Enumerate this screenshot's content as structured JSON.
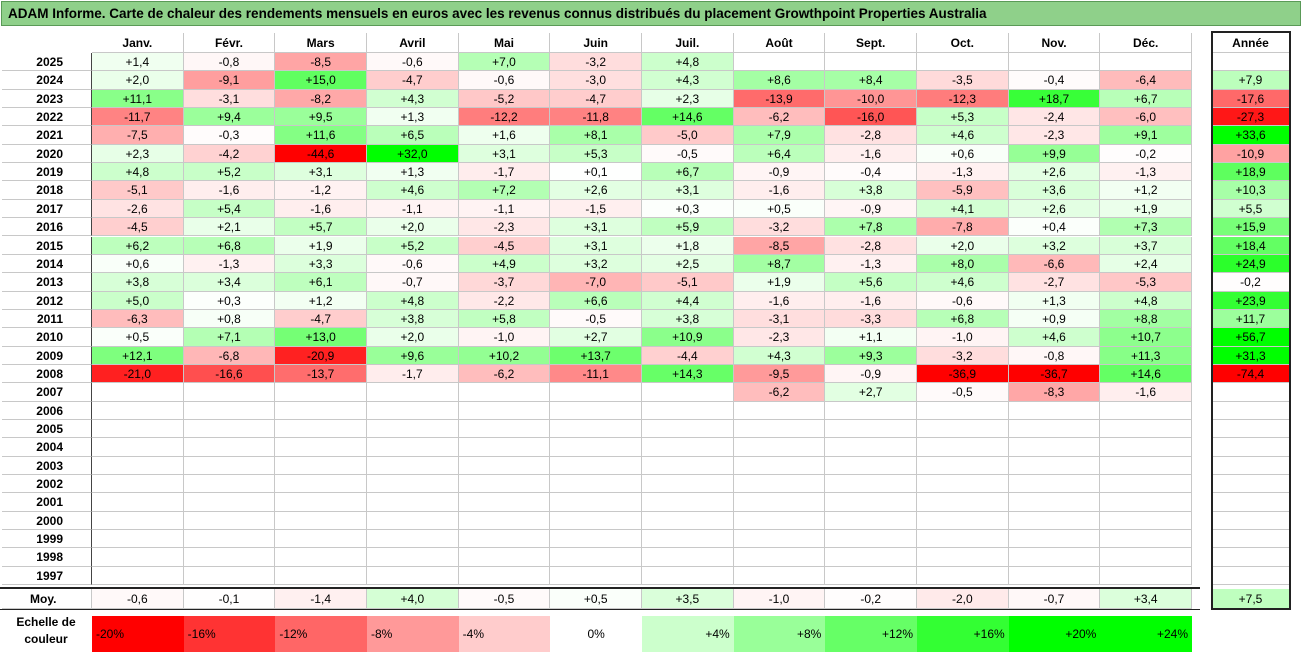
{
  "chart_data": {
    "type": "heatmap",
    "title": "ADAM Informe. Carte de chaleur des rendements mensuels en euros avec les revenus connus distribués du placement Growthpoint Properties Australia",
    "columns": [
      "Janv.",
      "Févr.",
      "Mars",
      "Avril",
      "Mai",
      "Juin",
      "Juil.",
      "Août",
      "Sept.",
      "Oct.",
      "Nov.",
      "Déc."
    ],
    "annual_column": "Année",
    "rows": [
      {
        "year": "2025",
        "values": [
          "+1,4",
          "-0,8",
          "-8,5",
          "-0,6",
          "+7,0",
          "-3,2",
          "+4,8",
          "",
          "",
          "",
          "",
          ""
        ],
        "annual": ""
      },
      {
        "year": "2024",
        "values": [
          "+2,0",
          "-9,1",
          "+15,0",
          "-4,7",
          "-0,6",
          "-3,0",
          "+4,3",
          "+8,6",
          "+8,4",
          "-3,5",
          "-0,4",
          "-6,4"
        ],
        "annual": "+7,9"
      },
      {
        "year": "2023",
        "values": [
          "+11,1",
          "-3,1",
          "-8,2",
          "+4,3",
          "-5,2",
          "-4,7",
          "+2,3",
          "-13,9",
          "-10,0",
          "-12,3",
          "+18,7",
          "+6,7"
        ],
        "annual": "-17,6"
      },
      {
        "year": "2022",
        "values": [
          "-11,7",
          "+9,4",
          "+9,5",
          "+1,3",
          "-12,2",
          "-11,8",
          "+14,6",
          "-6,2",
          "-16,0",
          "+5,3",
          "-2,4",
          "-6,0"
        ],
        "annual": "-27,3"
      },
      {
        "year": "2021",
        "values": [
          "-7,5",
          "-0,3",
          "+11,6",
          "+6,5",
          "+1,6",
          "+8,1",
          "-5,0",
          "+7,9",
          "-2,8",
          "+4,6",
          "-2,3",
          "+9,1"
        ],
        "annual": "+33,6"
      },
      {
        "year": "2020",
        "values": [
          "+2,3",
          "-4,2",
          "-44,6",
          "+32,0",
          "+3,1",
          "+5,3",
          "-0,5",
          "+6,4",
          "-1,6",
          "+0,6",
          "+9,9",
          "-0,2"
        ],
        "annual": "-10,9"
      },
      {
        "year": "2019",
        "values": [
          "+4,8",
          "+5,2",
          "+3,1",
          "+1,3",
          "-1,7",
          "+0,1",
          "+6,7",
          "-0,9",
          "-0,4",
          "-1,3",
          "+2,6",
          "-1,3"
        ],
        "annual": "+18,9"
      },
      {
        "year": "2018",
        "values": [
          "-5,1",
          "-1,6",
          "-1,2",
          "+4,6",
          "+7,2",
          "+2,6",
          "+3,1",
          "-1,6",
          "+3,8",
          "-5,9",
          "+3,6",
          "+1,2"
        ],
        "annual": "+10,3"
      },
      {
        "year": "2017",
        "values": [
          "-2,6",
          "+5,4",
          "-1,6",
          "-1,1",
          "-1,1",
          "-1,5",
          "+0,3",
          "+0,5",
          "-0,9",
          "+4,1",
          "+2,6",
          "+1,9"
        ],
        "annual": "+5,5"
      },
      {
        "year": "2016",
        "values": [
          "-4,5",
          "+2,1",
          "+5,7",
          "+2,0",
          "-2,3",
          "+3,1",
          "+5,9",
          "-3,2",
          "+7,8",
          "-7,8",
          "+0,4",
          "+7,3"
        ],
        "annual": "+15,9"
      },
      {
        "year": "2015",
        "values": [
          "+6,2",
          "+6,8",
          "+1,9",
          "+5,2",
          "-4,5",
          "+3,1",
          "+1,8",
          "-8,5",
          "-2,8",
          "+2,0",
          "+3,2",
          "+3,7"
        ],
        "annual": "+18,4"
      },
      {
        "year": "2014",
        "values": [
          "+0,6",
          "-1,3",
          "+3,3",
          "-0,6",
          "+4,9",
          "+3,2",
          "+2,5",
          "+8,7",
          "-1,3",
          "+8,0",
          "-6,6",
          "+2,4"
        ],
        "annual": "+24,9"
      },
      {
        "year": "2013",
        "values": [
          "+3,8",
          "+3,4",
          "+6,1",
          "-0,7",
          "-3,7",
          "-7,0",
          "-5,1",
          "+1,9",
          "+5,6",
          "+4,6",
          "-2,7",
          "-5,3"
        ],
        "annual": "-0,2"
      },
      {
        "year": "2012",
        "values": [
          "+5,0",
          "+0,3",
          "+1,2",
          "+4,8",
          "-2,2",
          "+6,6",
          "+4,4",
          "-1,6",
          "-1,6",
          "-0,6",
          "+1,3",
          "+4,8"
        ],
        "annual": "+23,9"
      },
      {
        "year": "2011",
        "values": [
          "-6,3",
          "+0,8",
          "-4,7",
          "+3,8",
          "+5,8",
          "-0,5",
          "+3,8",
          "-3,1",
          "-3,3",
          "+6,8",
          "+0,9",
          "+8,8"
        ],
        "annual": "+11,7"
      },
      {
        "year": "2010",
        "values": [
          "+0,5",
          "+7,1",
          "+13,0",
          "+2,0",
          "-1,0",
          "+2,7",
          "+10,9",
          "-2,3",
          "+1,1",
          "-1,0",
          "+4,6",
          "+10,7"
        ],
        "annual": "+56,7"
      },
      {
        "year": "2009",
        "values": [
          "+12,1",
          "-6,8",
          "-20,9",
          "+9,6",
          "+10,2",
          "+13,7",
          "-4,4",
          "+4,3",
          "+9,3",
          "-3,2",
          "-0,8",
          "+11,3"
        ],
        "annual": "+31,3"
      },
      {
        "year": "2008",
        "values": [
          "-21,0",
          "-16,6",
          "-13,7",
          "-1,7",
          "-6,2",
          "-11,1",
          "+14,3",
          "-9,5",
          "-0,9",
          "-36,9",
          "-36,7",
          "+14,6"
        ],
        "annual": "-74,4"
      },
      {
        "year": "2007",
        "values": [
          "",
          "",
          "",
          "",
          "",
          "",
          "",
          "-6,2",
          "+2,7",
          "-0,5",
          "-8,3",
          "-1,6"
        ],
        "annual": ""
      },
      {
        "year": "2006",
        "values": [
          "",
          "",
          "",
          "",
          "",
          "",
          "",
          "",
          "",
          "",
          "",
          ""
        ],
        "annual": ""
      },
      {
        "year": "2005",
        "values": [
          "",
          "",
          "",
          "",
          "",
          "",
          "",
          "",
          "",
          "",
          "",
          ""
        ],
        "annual": ""
      },
      {
        "year": "2004",
        "values": [
          "",
          "",
          "",
          "",
          "",
          "",
          "",
          "",
          "",
          "",
          "",
          ""
        ],
        "annual": ""
      },
      {
        "year": "2003",
        "values": [
          "",
          "",
          "",
          "",
          "",
          "",
          "",
          "",
          "",
          "",
          "",
          ""
        ],
        "annual": ""
      },
      {
        "year": "2002",
        "values": [
          "",
          "",
          "",
          "",
          "",
          "",
          "",
          "",
          "",
          "",
          "",
          ""
        ],
        "annual": ""
      },
      {
        "year": "2001",
        "values": [
          "",
          "",
          "",
          "",
          "",
          "",
          "",
          "",
          "",
          "",
          "",
          ""
        ],
        "annual": ""
      },
      {
        "year": "2000",
        "values": [
          "",
          "",
          "",
          "",
          "",
          "",
          "",
          "",
          "",
          "",
          "",
          ""
        ],
        "annual": ""
      },
      {
        "year": "1999",
        "values": [
          "",
          "",
          "",
          "",
          "",
          "",
          "",
          "",
          "",
          "",
          "",
          ""
        ],
        "annual": ""
      },
      {
        "year": "1998",
        "values": [
          "",
          "",
          "",
          "",
          "",
          "",
          "",
          "",
          "",
          "",
          "",
          ""
        ],
        "annual": ""
      },
      {
        "year": "1997",
        "values": [
          "",
          "",
          "",
          "",
          "",
          "",
          "",
          "",
          "",
          "",
          "",
          ""
        ],
        "annual": ""
      }
    ],
    "average": {
      "label": "Moy.",
      "values": [
        "-0,6",
        "-0,1",
        "-1,4",
        "+4,0",
        "-0,5",
        "+0,5",
        "+3,5",
        "-1,0",
        "-0,2",
        "-2,0",
        "-0,7",
        "+3,4"
      ],
      "annual": "+7,5"
    },
    "scale": {
      "label": "Echelle de couleur",
      "stops": [
        "-20%",
        "-16%",
        "-12%",
        "-8%",
        "-4%",
        "0%",
        "+4%",
        "+8%",
        "+12%",
        "+16%",
        "+20%",
        "+24%"
      ]
    },
    "colors": {
      "negative_max": "#ff0000",
      "neutral": "#ffffff",
      "positive_max": "#00ff00",
      "title_bg": "#8fd08a"
    }
  }
}
